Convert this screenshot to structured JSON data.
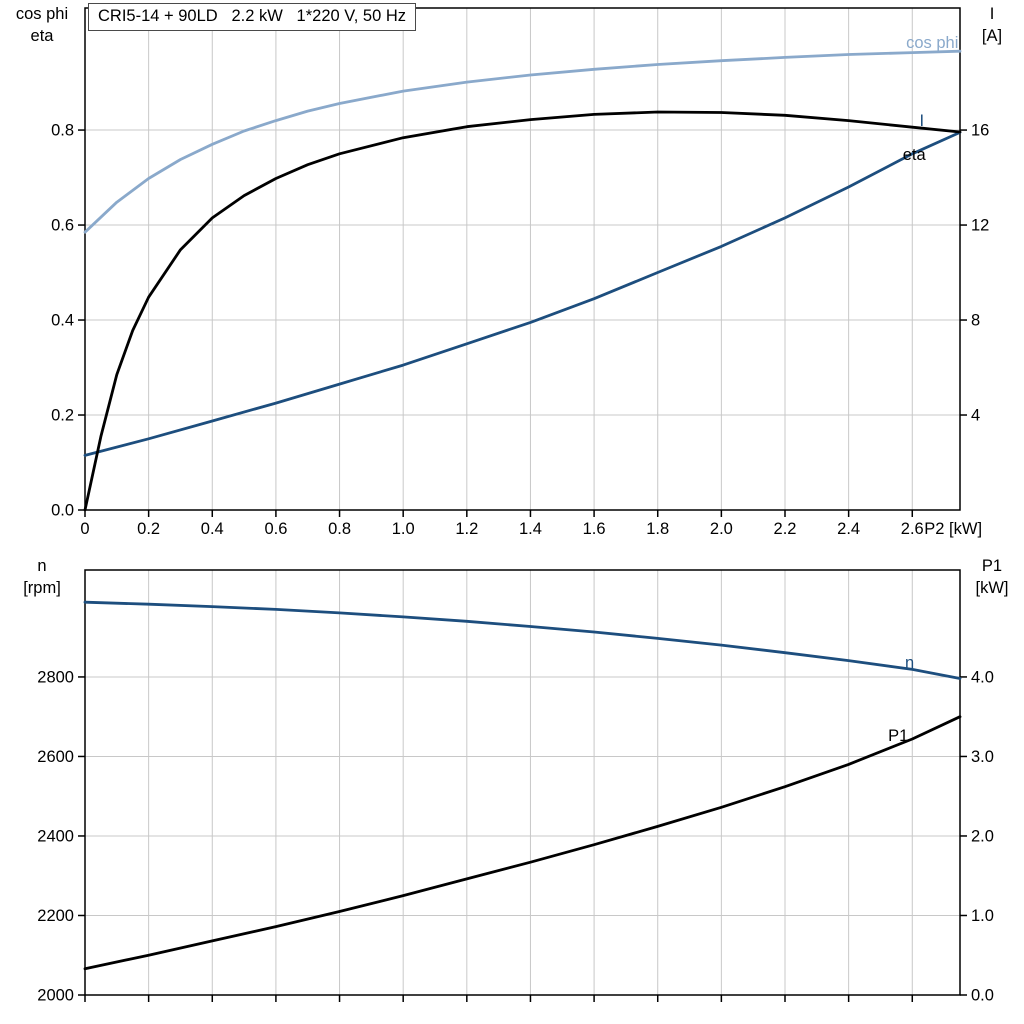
{
  "header": {
    "title": "CRI5-14 + 90LD   2.2 kW   1*220 V, 50 Hz"
  },
  "colors": {
    "cos_phi": "#8aa9cb",
    "blue": "#1d4e7e",
    "black": "#000000",
    "grid": "#c8c8c8",
    "axis": "#000000",
    "background": "#ffffff"
  },
  "chart_data": [
    {
      "type": "line",
      "title": "CRI5-14 + 90LD   2.2 kW   1*220 V, 50 Hz",
      "x_axis": {
        "label": "P2 [kW]",
        "min": 0,
        "max": 2.75,
        "tick_values": [
          0,
          0.2,
          0.4,
          0.6,
          0.8,
          1.0,
          1.2,
          1.4,
          1.6,
          1.8,
          2.0,
          2.2,
          2.4,
          2.6
        ],
        "tick_labels": [
          "0",
          "0.2",
          "0.4",
          "0.6",
          "0.8",
          "1.0",
          "1.2",
          "1.4",
          "1.6",
          "1.8",
          "2.0",
          "2.2",
          "2.4",
          "2.6"
        ],
        "grid": true
      },
      "y_left": {
        "title_lines": [
          "cos phi",
          "eta"
        ],
        "min": 0,
        "max": 1.057,
        "tick_values": [
          0,
          0.2,
          0.4,
          0.6,
          0.8
        ],
        "tick_labels": [
          "0.0",
          "0.2",
          "0.4",
          "0.6",
          "0.8"
        ]
      },
      "y_right": {
        "title_lines": [
          "I",
          "[A]"
        ],
        "min": 0,
        "max": 21.14,
        "tick_values": [
          4,
          8,
          12,
          16
        ],
        "tick_labels": [
          "4",
          "8",
          "12",
          "16"
        ]
      },
      "series": [
        {
          "name": "cos phi",
          "axis": "left",
          "color": "cos_phi",
          "x": [
            0,
            0.1,
            0.2,
            0.3,
            0.4,
            0.5,
            0.6,
            0.7,
            0.8,
            1.0,
            1.2,
            1.4,
            1.6,
            1.8,
            2.0,
            2.2,
            2.4,
            2.6,
            2.75
          ],
          "y": [
            0.585,
            0.648,
            0.698,
            0.738,
            0.77,
            0.798,
            0.82,
            0.84,
            0.856,
            0.882,
            0.901,
            0.916,
            0.928,
            0.938,
            0.946,
            0.953,
            0.959,
            0.963,
            0.966
          ],
          "label": {
            "text": "cos phi",
            "x": 2.745,
            "y_left": 0.973,
            "anchor": "end"
          }
        },
        {
          "name": "I",
          "axis": "right",
          "color": "blue",
          "x": [
            0,
            0.2,
            0.4,
            0.6,
            0.8,
            1.0,
            1.2,
            1.4,
            1.6,
            1.8,
            2.0,
            2.2,
            2.4,
            2.6,
            2.75
          ],
          "y": [
            2.3,
            3.0,
            3.75,
            4.5,
            5.3,
            6.1,
            7.0,
            7.9,
            8.9,
            10.0,
            11.1,
            12.3,
            13.6,
            15.0,
            15.9
          ],
          "label": {
            "text": "I",
            "x": 2.63,
            "y_left": 0.809,
            "anchor": "middle"
          }
        },
        {
          "name": "eta",
          "axis": "left",
          "color": "black",
          "x": [
            0,
            0.05,
            0.1,
            0.15,
            0.2,
            0.3,
            0.4,
            0.5,
            0.6,
            0.7,
            0.8,
            1.0,
            1.2,
            1.4,
            1.6,
            1.8,
            2.0,
            2.2,
            2.4,
            2.6,
            2.75
          ],
          "y": [
            0,
            0.155,
            0.285,
            0.378,
            0.448,
            0.548,
            0.615,
            0.662,
            0.698,
            0.727,
            0.75,
            0.784,
            0.807,
            0.822,
            0.833,
            0.838,
            0.837,
            0.831,
            0.82,
            0.806,
            0.796
          ],
          "label": {
            "text": "eta",
            "x": 2.57,
            "y_left": 0.737,
            "anchor": "start"
          }
        }
      ]
    },
    {
      "type": "line",
      "title": "",
      "x_axis": {
        "label": "",
        "min": 0,
        "max": 2.75,
        "tick_values": [
          0,
          0.2,
          0.4,
          0.6,
          0.8,
          1.0,
          1.2,
          1.4,
          1.6,
          1.8,
          2.0,
          2.2,
          2.4,
          2.6
        ],
        "tick_labels": [],
        "grid": true
      },
      "y_left": {
        "title_lines": [
          "n",
          "[rpm]"
        ],
        "min": 2000,
        "max": 3069,
        "tick_values": [
          2000,
          2200,
          2400,
          2600,
          2800
        ],
        "tick_labels": [
          "2000",
          "2200",
          "2400",
          "2600",
          "2800"
        ]
      },
      "y_right": {
        "title_lines": [
          "P1",
          "[kW]"
        ],
        "min": 0,
        "max": 5.345,
        "tick_values": [
          0,
          1,
          2,
          3,
          4
        ],
        "tick_labels": [
          "0.0",
          "1.0",
          "2.0",
          "3.0",
          "4.0"
        ]
      },
      "series": [
        {
          "name": "n",
          "axis": "left",
          "color": "blue",
          "x": [
            0,
            0.2,
            0.4,
            0.6,
            0.8,
            1.0,
            1.2,
            1.4,
            1.6,
            1.8,
            2.0,
            2.2,
            2.4,
            2.6,
            2.75
          ],
          "y": [
            2988,
            2983,
            2977,
            2970,
            2961,
            2951,
            2940,
            2927,
            2913,
            2897,
            2880,
            2861,
            2841,
            2819,
            2796
          ],
          "label": {
            "text": "n",
            "x": 2.577,
            "y_left": 2822,
            "anchor": "start"
          }
        },
        {
          "name": "P1",
          "axis": "right",
          "color": "black",
          "x": [
            0,
            0.2,
            0.4,
            0.6,
            0.8,
            1.0,
            1.2,
            1.4,
            1.6,
            1.8,
            2.0,
            2.2,
            2.4,
            2.6,
            2.75
          ],
          "y": [
            0.33,
            0.5,
            0.68,
            0.86,
            1.05,
            1.25,
            1.46,
            1.67,
            1.89,
            2.12,
            2.36,
            2.62,
            2.9,
            3.22,
            3.5
          ],
          "label": {
            "text": "P1",
            "x": 2.524,
            "y_left": 2639,
            "anchor": "start"
          }
        }
      ]
    }
  ]
}
